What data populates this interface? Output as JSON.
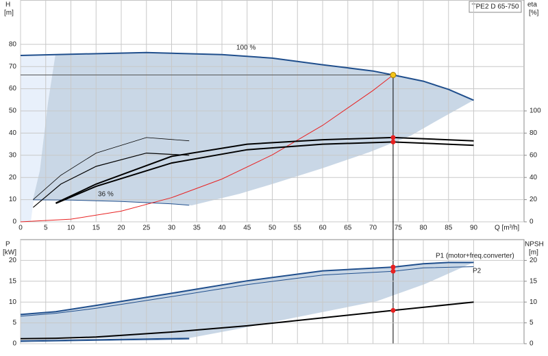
{
  "chart_data": [
    {
      "type": "line",
      "title": "TPE2 D 65-750",
      "xlabel": "Q [m³/h]",
      "ylabel": "H",
      "yunit": "[m]",
      "y2label": "eta",
      "y2unit": "[%]",
      "xlim": [
        0,
        100
      ],
      "xticks": [
        0,
        5,
        10,
        15,
        20,
        25,
        30,
        35,
        40,
        45,
        50,
        55,
        60,
        65,
        70,
        75,
        80,
        85,
        90
      ],
      "ylim": [
        0,
        100
      ],
      "yticks": [
        0,
        10,
        20,
        30,
        40,
        50,
        60,
        70,
        80
      ],
      "y2lim": [
        0,
        200
      ],
      "y2ticks": [
        0,
        20,
        40,
        60,
        80,
        100
      ],
      "grid": true,
      "series": [
        {
          "name": "100 %",
          "color": "#1f4e8c",
          "width": 2,
          "x": [
            0,
            7,
            25,
            40,
            50,
            60,
            70,
            74,
            80,
            85,
            90
          ],
          "values": [
            75,
            75.4,
            76.3,
            75.4,
            73.8,
            70.8,
            68,
            66.2,
            63.4,
            59.7,
            54.8
          ]
        },
        {
          "name": "36 %",
          "color": "#1f4e8c",
          "width": 1,
          "x": [
            2.5,
            10,
            20,
            30,
            33.5
          ],
          "values": [
            9.9,
            9.8,
            9.2,
            8.1,
            7.5
          ]
        },
        {
          "color": "#e82020",
          "width": 1,
          "x": [
            0,
            10,
            20,
            30,
            40,
            50,
            60,
            70,
            74
          ],
          "values": [
            0,
            1.2,
            4.8,
            10.9,
            19.3,
            30.2,
            43.5,
            59.2,
            66.2
          ]
        },
        {
          "color": "#000000",
          "width": 2,
          "axis": "y2",
          "x": [
            7,
            15,
            30,
            45,
            60,
            74,
            90
          ],
          "values": [
            17,
            34,
            59,
            70,
            74,
            76,
            73
          ]
        },
        {
          "color": "#000000",
          "width": 2,
          "axis": "y2",
          "x": [
            7,
            15,
            30,
            45,
            60,
            74,
            90
          ],
          "values": [
            16.6,
            32,
            53,
            65,
            70,
            72,
            69
          ]
        },
        {
          "color": "#000000",
          "width": 0.8,
          "axis": "y2",
          "x": [
            2.5,
            8,
            15,
            25,
            33.5
          ],
          "values": [
            20,
            42,
            62,
            76,
            73
          ]
        },
        {
          "color": "#000000",
          "width": 1.2,
          "axis": "y2",
          "x": [
            2.5,
            8,
            15,
            25,
            33.5
          ],
          "values": [
            13,
            34,
            50,
            62,
            60
          ]
        }
      ],
      "duty_point": {
        "x": 74,
        "y": 66.2,
        "color": "#f5c518"
      },
      "eta_points": {
        "x": 74,
        "values": [
          76,
          72
        ],
        "color": "#e82020"
      }
    },
    {
      "type": "line",
      "ylabel": "P",
      "yunit": "[kW]",
      "y2label": "NPSH",
      "y2unit": "[m]",
      "xlim": [
        0,
        100
      ],
      "ylim": [
        0,
        25
      ],
      "yticks": [
        0,
        5,
        10,
        15,
        20
      ],
      "y2lim": [
        0,
        25
      ],
      "y2ticks": [
        0,
        5,
        10,
        15,
        20
      ],
      "grid": true,
      "series": [
        {
          "name": "P1 (motor+freq.converter)",
          "color": "#1f4e8c",
          "width": 2,
          "x": [
            0,
            7,
            15,
            30,
            45,
            60,
            74,
            80,
            85,
            90
          ],
          "values": [
            7,
            7.7,
            9.2,
            12.1,
            15.1,
            17.5,
            18.4,
            19.2,
            19.5,
            19.5
          ]
        },
        {
          "name": "P2",
          "color": "#1f4e8c",
          "width": 1,
          "x": [
            0,
            7,
            15,
            30,
            45,
            60,
            74,
            80,
            90
          ],
          "values": [
            6.6,
            7.3,
            8.5,
            11.3,
            14.2,
            16.5,
            17.4,
            18.2,
            18.5
          ]
        },
        {
          "color": "#1f4e8c",
          "width": 1.5,
          "x": [
            0,
            33.5
          ],
          "values": [
            0.7,
            1.3
          ]
        },
        {
          "color": "#1f4e8c",
          "width": 1,
          "x": [
            0,
            33.5
          ],
          "values": [
            0.5,
            1.1
          ]
        },
        {
          "color": "#000000",
          "width": 2,
          "axis": "y2",
          "x": [
            0,
            7,
            15,
            30,
            45,
            60,
            74,
            90
          ],
          "values": [
            1.2,
            1.3,
            1.6,
            2.8,
            4.3,
            6.2,
            8,
            10
          ]
        }
      ],
      "points": {
        "x": 74,
        "values": [
          18.4,
          17.4,
          8
        ],
        "color": "#e82020"
      }
    }
  ]
}
